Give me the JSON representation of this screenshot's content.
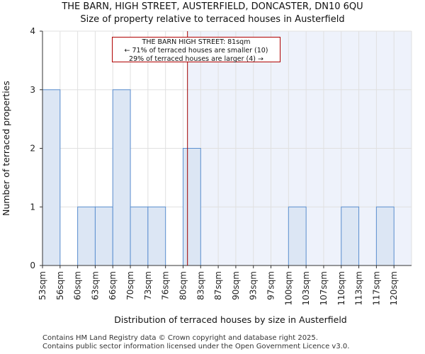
{
  "title": {
    "line1": "THE BARN, HIGH STREET, AUSTERFIELD, DONCASTER, DN10 6QU",
    "line2": "Size of property relative to terraced houses in Austerfield"
  },
  "annotation": {
    "line1": "THE BARN HIGH STREET: 81sqm",
    "line2": "← 71% of terraced houses are smaller (10)",
    "line3": "29% of terraced houses are larger (4) →"
  },
  "footer": {
    "line1": "Contains HM Land Registry data © Crown copyright and database right 2025.",
    "line2": "Contains public sector information licensed under the Open Government Licence v3.0."
  },
  "colors": {
    "bar_fill": "#dce6f4",
    "bar_stroke": "#5b8fd0",
    "highlight_region": "#eef2fb",
    "marker_line": "#a00000",
    "grid": "#e0e0e0"
  },
  "chart_data": {
    "type": "bar",
    "title": "Size of property relative to terraced houses in Austerfield",
    "xlabel": "Distribution of terraced houses by size in Austerfield",
    "ylabel": "Number of terraced properties",
    "categories": [
      "53sqm",
      "56sqm",
      "60sqm",
      "63sqm",
      "66sqm",
      "70sqm",
      "73sqm",
      "76sqm",
      "80sqm",
      "83sqm",
      "87sqm",
      "90sqm",
      "93sqm",
      "97sqm",
      "100sqm",
      "103sqm",
      "107sqm",
      "110sqm",
      "113sqm",
      "117sqm",
      "120sqm"
    ],
    "values": [
      3,
      0,
      1,
      1,
      3,
      1,
      1,
      0,
      2,
      0,
      0,
      0,
      0,
      0,
      1,
      0,
      0,
      1,
      0,
      1,
      0
    ],
    "ylim": [
      0,
      4
    ],
    "yticks": [
      0,
      1,
      2,
      3,
      4
    ],
    "property_size_bin_position": 8.25,
    "grid": true
  }
}
